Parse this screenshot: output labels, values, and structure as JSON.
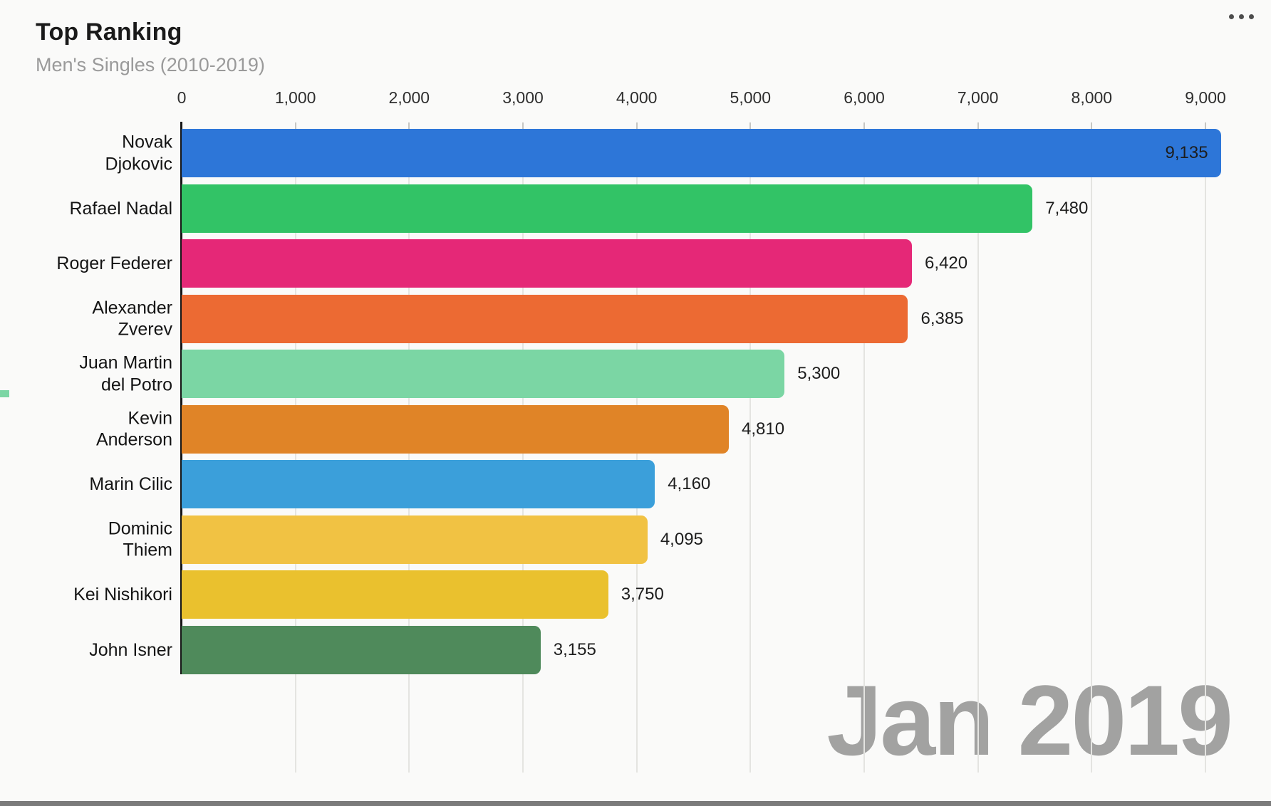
{
  "header": {
    "title": "Top Ranking",
    "subtitle": "Men's Singles (2010-2019)",
    "menu_icon": "kebab-menu-dots"
  },
  "chart_data": {
    "type": "bar",
    "orientation": "horizontal",
    "title": "Top Ranking",
    "subtitle": "Men's Singles (2010-2019)",
    "date_label": "Jan 2019",
    "xlabel": "",
    "ylabel": "",
    "xlim": [
      0,
      9000
    ],
    "grid": "vertical",
    "x_ticks": [
      {
        "value": 0,
        "label": "0"
      },
      {
        "value": 1000,
        "label": "1,000"
      },
      {
        "value": 2000,
        "label": "2,000"
      },
      {
        "value": 3000,
        "label": "3,000"
      },
      {
        "value": 4000,
        "label": "4,000"
      },
      {
        "value": 5000,
        "label": "5,000"
      },
      {
        "value": 6000,
        "label": "6,000"
      },
      {
        "value": 7000,
        "label": "7,000"
      },
      {
        "value": 8000,
        "label": "8,000"
      },
      {
        "value": 9000,
        "label": "9,000"
      }
    ],
    "rows": [
      {
        "name": "Novak Djokovic",
        "name_lines": [
          "Novak",
          "Djokovic"
        ],
        "value": 9135,
        "label": "9,135",
        "color": "#2d76d8",
        "label_position": "inside"
      },
      {
        "name": "Rafael Nadal",
        "name_lines": [
          "Rafael Nadal"
        ],
        "value": 7480,
        "label": "7,480",
        "color": "#32c366",
        "label_position": "outside"
      },
      {
        "name": "Roger Federer",
        "name_lines": [
          "Roger Federer"
        ],
        "value": 6420,
        "label": "6,420",
        "color": "#e52877",
        "label_position": "outside"
      },
      {
        "name": "Alexander Zverev",
        "name_lines": [
          "Alexander",
          "Zverev"
        ],
        "value": 6385,
        "label": "6,385",
        "color": "#ec6a33",
        "label_position": "outside"
      },
      {
        "name": "Juan Martin del Potro",
        "name_lines": [
          "Juan Martin",
          "del Potro"
        ],
        "value": 5300,
        "label": "5,300",
        "color": "#7bd6a4",
        "label_position": "outside"
      },
      {
        "name": "Kevin Anderson",
        "name_lines": [
          "Kevin",
          "Anderson"
        ],
        "value": 4810,
        "label": "4,810",
        "color": "#e08427",
        "label_position": "outside"
      },
      {
        "name": "Marin Cilic",
        "name_lines": [
          "Marin Cilic"
        ],
        "value": 4160,
        "label": "4,160",
        "color": "#3b9fda",
        "label_position": "outside"
      },
      {
        "name": "Dominic Thiem",
        "name_lines": [
          "Dominic",
          "Thiem"
        ],
        "value": 4095,
        "label": "4,095",
        "color": "#f1c243",
        "label_position": "outside"
      },
      {
        "name": "Kei Nishikori",
        "name_lines": [
          "Kei Nishikori"
        ],
        "value": 3750,
        "label": "3,750",
        "color": "#eac12e",
        "label_position": "outside"
      },
      {
        "name": "John Isner",
        "name_lines": [
          "John Isner"
        ],
        "value": 3155,
        "label": "3,155",
        "color": "#4f8a5b",
        "label_position": "outside"
      }
    ]
  },
  "timeline": {
    "progress_percent": 100,
    "bar_color": "#7b7b7b"
  }
}
